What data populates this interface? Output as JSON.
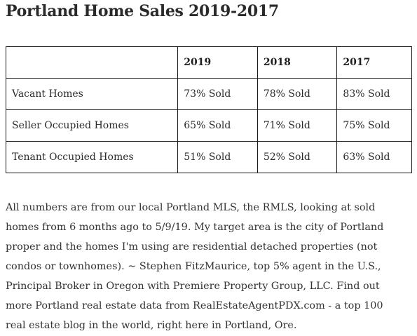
{
  "title": "Portland Home Sales 2019-2017",
  "table": {
    "headers": [
      "",
      "2019",
      "2018",
      "2017"
    ],
    "rows": [
      {
        "label": "Vacant Homes",
        "values": [
          "73% Sold",
          "78% Sold",
          "83% Sold"
        ]
      },
      {
        "label": "Seller Occupied Homes",
        "values": [
          "65% Sold",
          "71% Sold",
          "75% Sold"
        ]
      },
      {
        "label": "Tenant Occupied Homes",
        "values": [
          "51% Sold",
          "52% Sold",
          "63% Sold"
        ]
      }
    ]
  },
  "footnote": "All numbers are from our local Portland MLS, the RMLS, looking at sold homes from 6 months ago to 5/9/19. My target area is the city of Portland proper and the homes I'm using are residential detached properties (not condos or townhomes). ~ Stephen FitzMaurice, top 5% agent in the U.S., Principal Broker in Oregon with Premiere Property Group, LLC. Find out more Portland real estate data from RealEstateAgentPDX.com - a top 100 real estate blog in the world, right here in Portland, Ore."
}
